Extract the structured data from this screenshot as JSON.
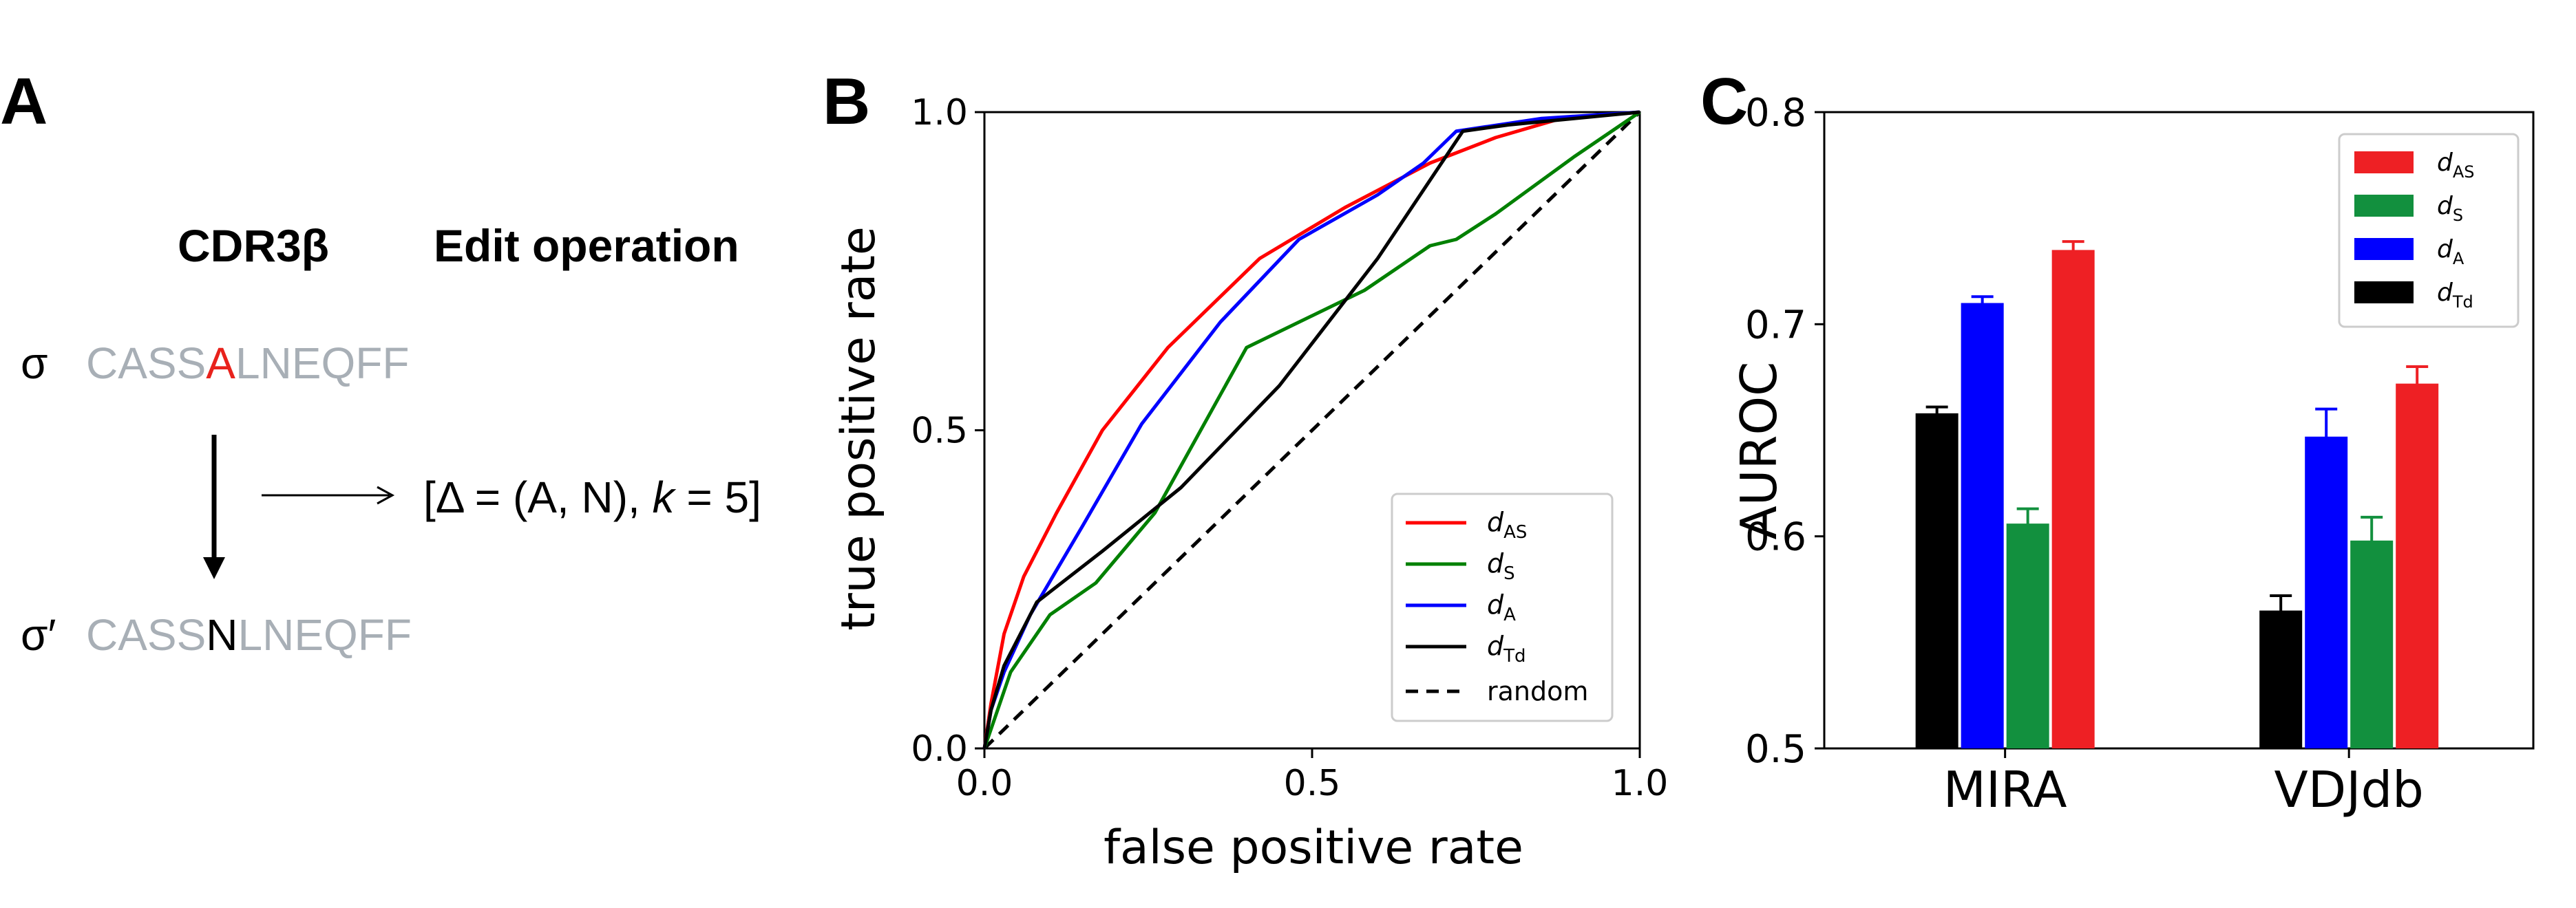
{
  "panel_a": {
    "letter": "A",
    "col_header_cdr3": "CDR3β",
    "col_header_edit": "Edit operation",
    "sigma_symbol": "σ",
    "sigma_prime_symbol": "σ′",
    "seq1": {
      "prefix": "CASS",
      "mut": "A",
      "suffix": "LNEQFF"
    },
    "seq2": {
      "prefix": "CASS",
      "mut": "N",
      "suffix": "LNEQFF"
    },
    "edit": {
      "open": "[Δ = (A, N), ",
      "k": "k",
      "rest": " = 5]"
    },
    "colors": {
      "grey": "#a8afb6",
      "red": "#e8221c",
      "black": "#000000"
    }
  },
  "panel_b": {
    "letter": "B",
    "legend": {
      "d_AS": {
        "sym": "d",
        "sub": "AS"
      },
      "d_S": {
        "sym": "d",
        "sub": "S"
      },
      "d_A": {
        "sym": "d",
        "sub": "A"
      },
      "d_Td": {
        "sym": "d",
        "sub": "Td"
      },
      "random": "random"
    }
  },
  "panel_c": {
    "letter": "C",
    "legend": {
      "d_AS": {
        "sym": "d",
        "sub": "AS"
      },
      "d_S": {
        "sym": "d",
        "sub": "S"
      },
      "d_A": {
        "sym": "d",
        "sub": "A"
      },
      "d_Td": {
        "sym": "d",
        "sub": "Td"
      }
    }
  },
  "chart_data": [
    {
      "type": "line",
      "xlabel": "false positive rate",
      "ylabel": "true positive rate",
      "xlim": [
        0,
        1
      ],
      "ylim": [
        0,
        1
      ],
      "xticks": [
        "0.0",
        "0.5",
        "1.0"
      ],
      "yticks": [
        "0.0",
        "0.5",
        "1.0"
      ],
      "grid": false,
      "legend_position": "bottom-right",
      "series": [
        {
          "key": "d_AS",
          "color": "#ff0000",
          "dash": "",
          "x": [
            0,
            0.01,
            0.03,
            0.06,
            0.11,
            0.18,
            0.28,
            0.42,
            0.55,
            0.68,
            0.78,
            0.88,
            1.0
          ],
          "y": [
            0,
            0.07,
            0.18,
            0.27,
            0.37,
            0.5,
            0.63,
            0.77,
            0.85,
            0.92,
            0.96,
            0.99,
            1.0
          ]
        },
        {
          "key": "d_S",
          "color": "#008000",
          "dash": "",
          "x": [
            0,
            0.04,
            0.1,
            0.17,
            0.26,
            0.4,
            0.5,
            0.58,
            0.68,
            0.72,
            0.78,
            0.9,
            1.0
          ],
          "y": [
            0,
            0.12,
            0.21,
            0.26,
            0.37,
            0.63,
            0.68,
            0.72,
            0.79,
            0.8,
            0.84,
            0.93,
            1.0
          ]
        },
        {
          "key": "d_A",
          "color": "#0000ff",
          "dash": "",
          "x": [
            0,
            0.01,
            0.03,
            0.07,
            0.15,
            0.24,
            0.36,
            0.48,
            0.6,
            0.67,
            0.72,
            0.85,
            1.0
          ],
          "y": [
            0,
            0.06,
            0.12,
            0.21,
            0.35,
            0.51,
            0.67,
            0.8,
            0.87,
            0.92,
            0.97,
            0.99,
            1.0
          ]
        },
        {
          "key": "d_Td",
          "color": "#000000",
          "dash": "",
          "x": [
            0,
            0.01,
            0.03,
            0.08,
            0.18,
            0.3,
            0.45,
            0.6,
            0.73,
            0.8,
            0.9,
            1.0
          ],
          "y": [
            0,
            0.06,
            0.13,
            0.23,
            0.31,
            0.41,
            0.57,
            0.77,
            0.97,
            0.98,
            0.99,
            1.0
          ]
        },
        {
          "key": "random",
          "color": "#000000",
          "dash": "18,12",
          "x": [
            0,
            1
          ],
          "y": [
            0,
            1
          ]
        }
      ]
    },
    {
      "type": "bar",
      "xlabel": "",
      "ylabel": "AUROC",
      "ylim": [
        0.5,
        0.8
      ],
      "yticks": [
        "0.5",
        "0.6",
        "0.7",
        "0.8"
      ],
      "categories": [
        "MIRA",
        "VDJdb"
      ],
      "grid": false,
      "legend_position": "top-right",
      "series": [
        {
          "key": "d_Td",
          "color": "#000000",
          "values": [
            0.658,
            0.565
          ],
          "errors": [
            0.003,
            0.007
          ]
        },
        {
          "key": "d_A",
          "color": "#0000ff",
          "values": [
            0.71,
            0.647
          ],
          "errors": [
            0.003,
            0.013
          ]
        },
        {
          "key": "d_S",
          "color": "#12903e",
          "values": [
            0.606,
            0.598
          ],
          "errors": [
            0.007,
            0.011
          ]
        },
        {
          "key": "d_AS",
          "color": "#ee2024",
          "values": [
            0.735,
            0.672
          ],
          "errors": [
            0.004,
            0.008
          ]
        }
      ],
      "legend_order": [
        "d_AS",
        "d_S",
        "d_A",
        "d_Td"
      ]
    }
  ]
}
